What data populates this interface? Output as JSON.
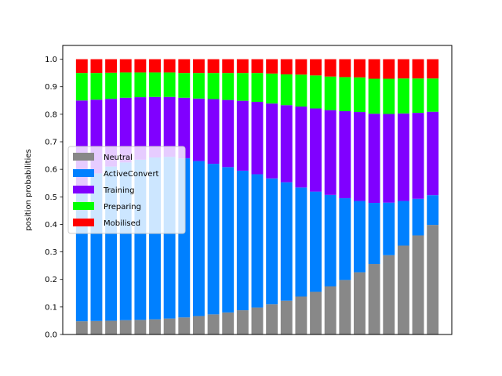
{
  "chart_data": {
    "type": "bar",
    "stacked": true,
    "ylabel": "position probabilities",
    "xlabel": "",
    "title": "",
    "ylim": [
      0,
      1.0
    ],
    "yticks": [
      "0.0",
      "0.1",
      "0.2",
      "0.3",
      "0.4",
      "0.5",
      "0.6",
      "0.7",
      "0.8",
      "0.9",
      "1.0"
    ],
    "xticks_shown": false,
    "bar_count": 25,
    "legend_position": "center-left",
    "series": [
      {
        "name": "Neutral",
        "color": "#888888",
        "values": [
          0.048,
          0.049,
          0.05,
          0.052,
          0.053,
          0.055,
          0.058,
          0.062,
          0.067,
          0.073,
          0.08,
          0.088,
          0.098,
          0.11,
          0.123,
          0.138,
          0.155,
          0.175,
          0.198,
          0.226,
          0.256,
          0.288,
          0.323,
          0.36,
          0.398
        ]
      },
      {
        "name": "ActiveConvert",
        "color": "#0080ff",
        "values": [
          0.492,
          0.536,
          0.56,
          0.573,
          0.582,
          0.588,
          0.587,
          0.578,
          0.563,
          0.547,
          0.528,
          0.507,
          0.484,
          0.457,
          0.43,
          0.396,
          0.364,
          0.332,
          0.297,
          0.259,
          0.222,
          0.191,
          0.162,
          0.133,
          0.108
        ]
      },
      {
        "name": "Training",
        "color": "#8000ff",
        "values": [
          0.31,
          0.268,
          0.246,
          0.235,
          0.227,
          0.22,
          0.218,
          0.22,
          0.227,
          0.235,
          0.244,
          0.254,
          0.263,
          0.272,
          0.28,
          0.294,
          0.302,
          0.308,
          0.316,
          0.323,
          0.324,
          0.322,
          0.318,
          0.312,
          0.303
        ]
      },
      {
        "name": "Preparing",
        "color": "#00ff00",
        "values": [
          0.1,
          0.097,
          0.095,
          0.092,
          0.09,
          0.089,
          0.089,
          0.09,
          0.093,
          0.095,
          0.098,
          0.101,
          0.105,
          0.109,
          0.112,
          0.116,
          0.12,
          0.122,
          0.124,
          0.126,
          0.127,
          0.128,
          0.127,
          0.125,
          0.121
        ]
      },
      {
        "name": "Mobilised",
        "color": "#ff0000",
        "values": [
          0.05,
          0.05,
          0.049,
          0.048,
          0.048,
          0.048,
          0.048,
          0.05,
          0.05,
          0.05,
          0.05,
          0.05,
          0.05,
          0.052,
          0.055,
          0.056,
          0.059,
          0.063,
          0.065,
          0.066,
          0.071,
          0.071,
          0.07,
          0.07,
          0.07
        ]
      }
    ]
  }
}
